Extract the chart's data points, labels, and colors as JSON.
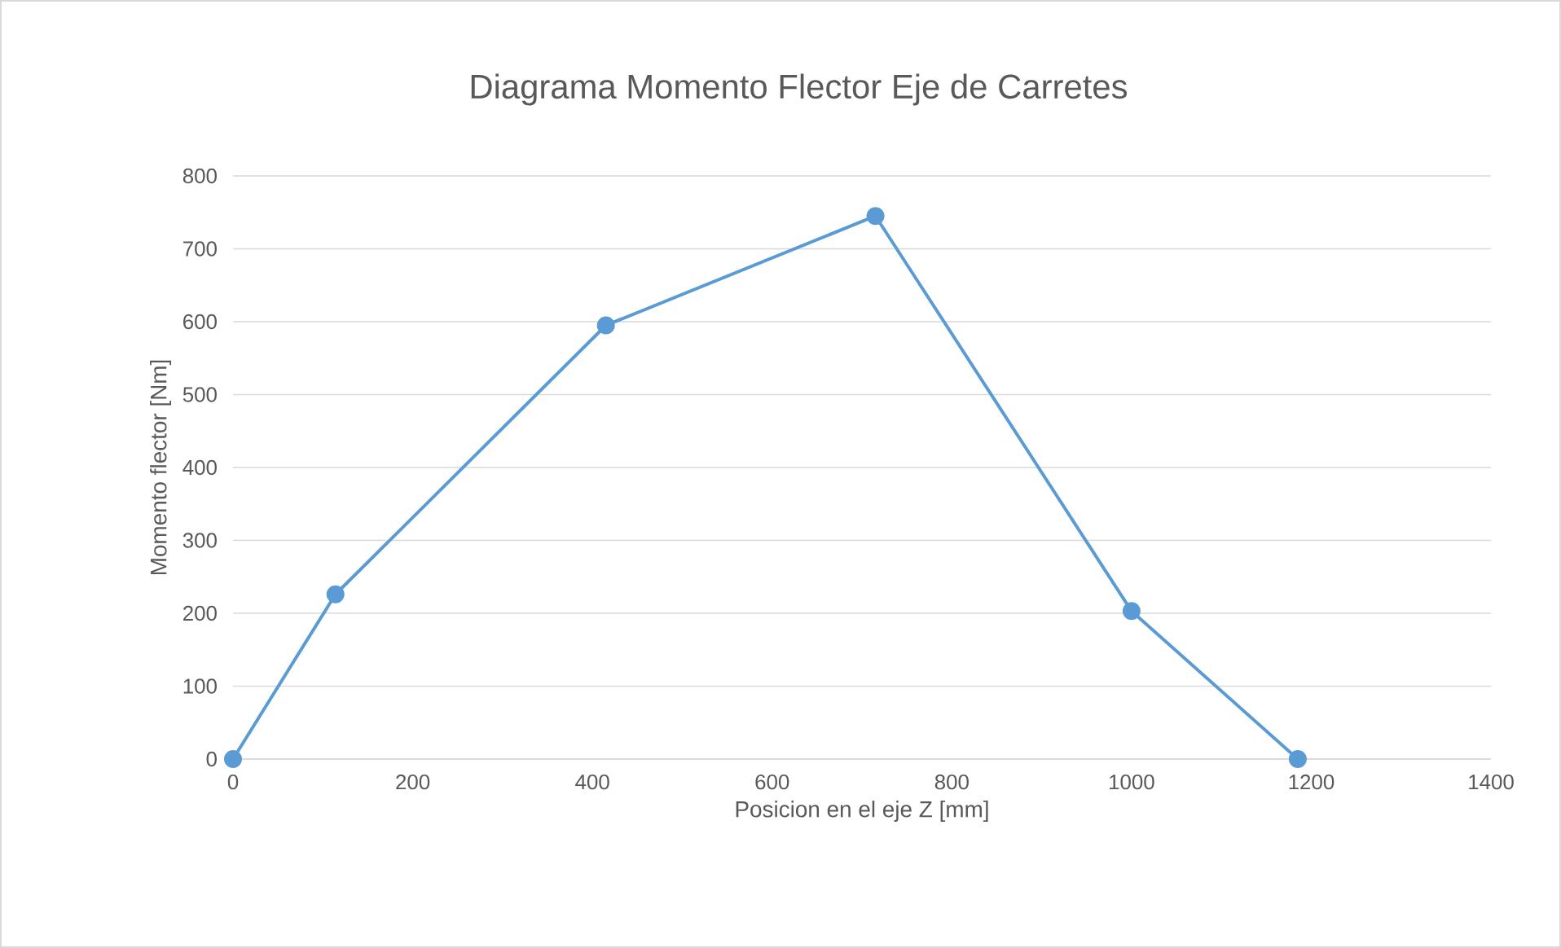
{
  "chart_data": {
    "type": "line",
    "title": "Diagrama Momento Flector Eje de Carretes",
    "xlabel": "Posicion en el eje Z [mm]",
    "ylabel": "Momento flector [Nm]",
    "x": [
      0,
      114,
      415,
      715,
      1000,
      1185
    ],
    "values": [
      0,
      226,
      595,
      745,
      203,
      0
    ],
    "color": "#5b9bd5",
    "marker": "circle",
    "line_style": "solid",
    "grid": "y",
    "xlim": [
      0,
      1400
    ],
    "ylim": [
      0,
      800
    ],
    "xticks": [
      0,
      200,
      400,
      600,
      800,
      1000,
      1200,
      1400
    ],
    "yticks": [
      0,
      100,
      200,
      300,
      400,
      500,
      600,
      700,
      800
    ]
  }
}
